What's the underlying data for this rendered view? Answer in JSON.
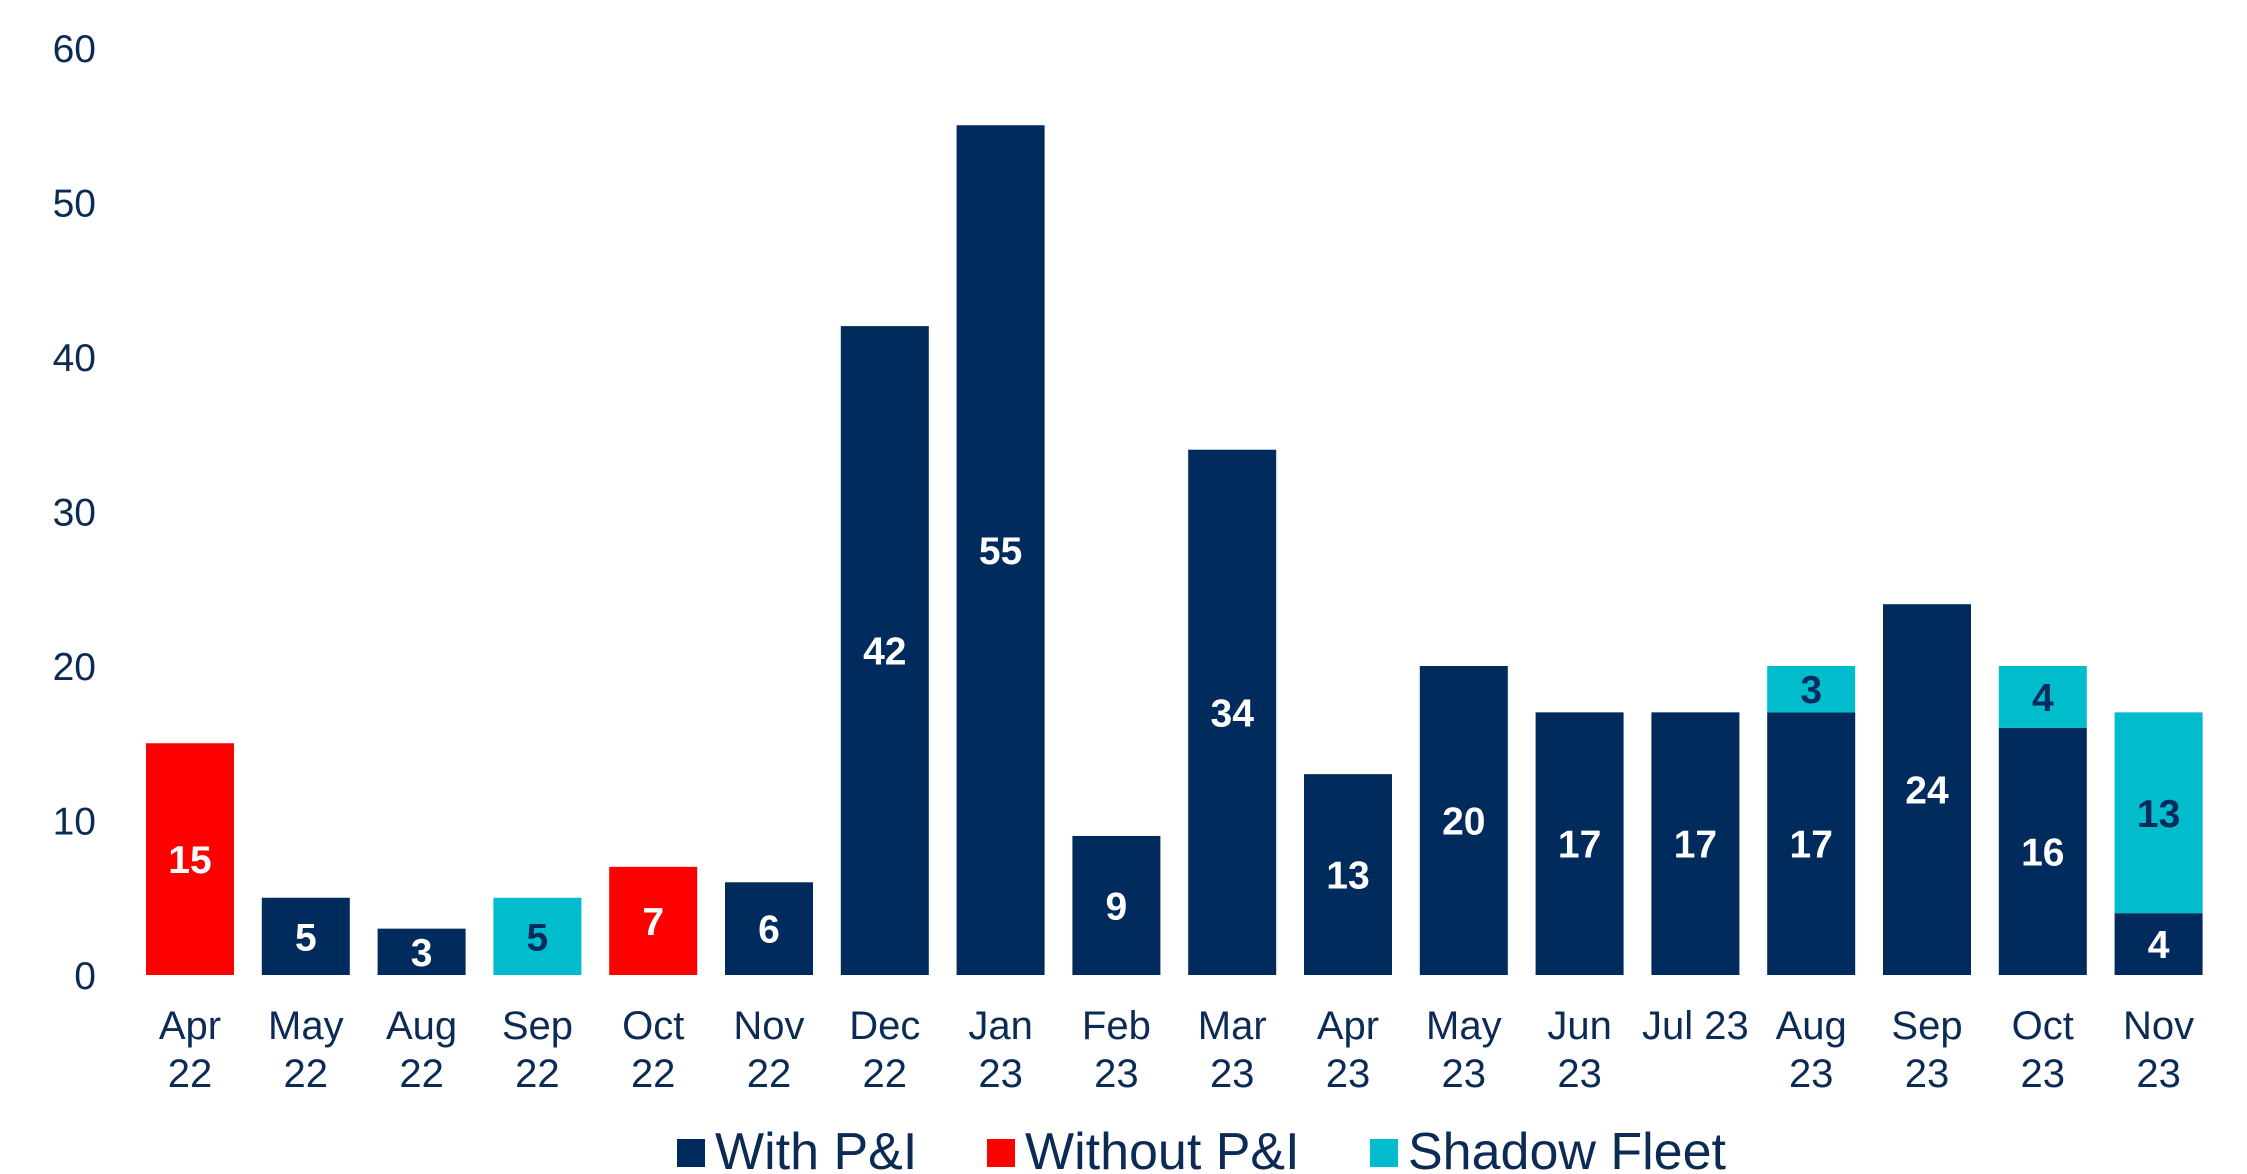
{
  "chart_data": {
    "type": "bar",
    "stacked": true,
    "categories": [
      "Apr 22",
      "May 22",
      "Aug 22",
      "Sep 22",
      "Oct 22",
      "Nov 22",
      "Dec 22",
      "Jan 23",
      "Feb 23",
      "Mar 23",
      "Apr 23",
      "May 23",
      "Jun 23",
      "Jul 23",
      "Aug 23",
      "Sep 23",
      "Oct 23",
      "Nov 23"
    ],
    "category_labels": [
      [
        "Apr",
        "22"
      ],
      [
        "May",
        "22"
      ],
      [
        "Aug",
        "22"
      ],
      [
        "Sep",
        "22"
      ],
      [
        "Oct",
        "22"
      ],
      [
        "Nov",
        "22"
      ],
      [
        "Dec",
        "22"
      ],
      [
        "Jan",
        "23"
      ],
      [
        "Feb",
        "23"
      ],
      [
        "Mar",
        "23"
      ],
      [
        "Apr",
        "23"
      ],
      [
        "May",
        "23"
      ],
      [
        "Jun",
        "23"
      ],
      [
        "Jul 23"
      ],
      [
        "Aug",
        "23"
      ],
      [
        "Sep",
        "23"
      ],
      [
        "Oct",
        "23"
      ],
      [
        "Nov",
        "23"
      ]
    ],
    "series": [
      {
        "name": "With P&I",
        "color": "#002b5c",
        "label_color": "#ffffff",
        "values": [
          0,
          5,
          3,
          0,
          0,
          6,
          42,
          55,
          9,
          34,
          13,
          20,
          17,
          17,
          17,
          24,
          16,
          4
        ]
      },
      {
        "name": "Without P&I",
        "color": "#ff0000",
        "label_color": "#ffffff",
        "values": [
          15,
          0,
          0,
          0,
          7,
          0,
          0,
          0,
          0,
          0,
          0,
          0,
          0,
          0,
          0,
          0,
          0,
          0
        ]
      },
      {
        "name": "Shadow Fleet",
        "color": "#00bccc",
        "label_color": "#002b5c",
        "values": [
          0,
          0,
          0,
          5,
          0,
          0,
          0,
          0,
          0,
          0,
          0,
          0,
          0,
          0,
          3,
          0,
          4,
          13
        ]
      }
    ],
    "yticks": [
      "0",
      "10",
      "20",
      "30",
      "40",
      "50",
      "60"
    ],
    "ylim": [
      0,
      60
    ],
    "grid": false,
    "legend_position": "bottom"
  }
}
